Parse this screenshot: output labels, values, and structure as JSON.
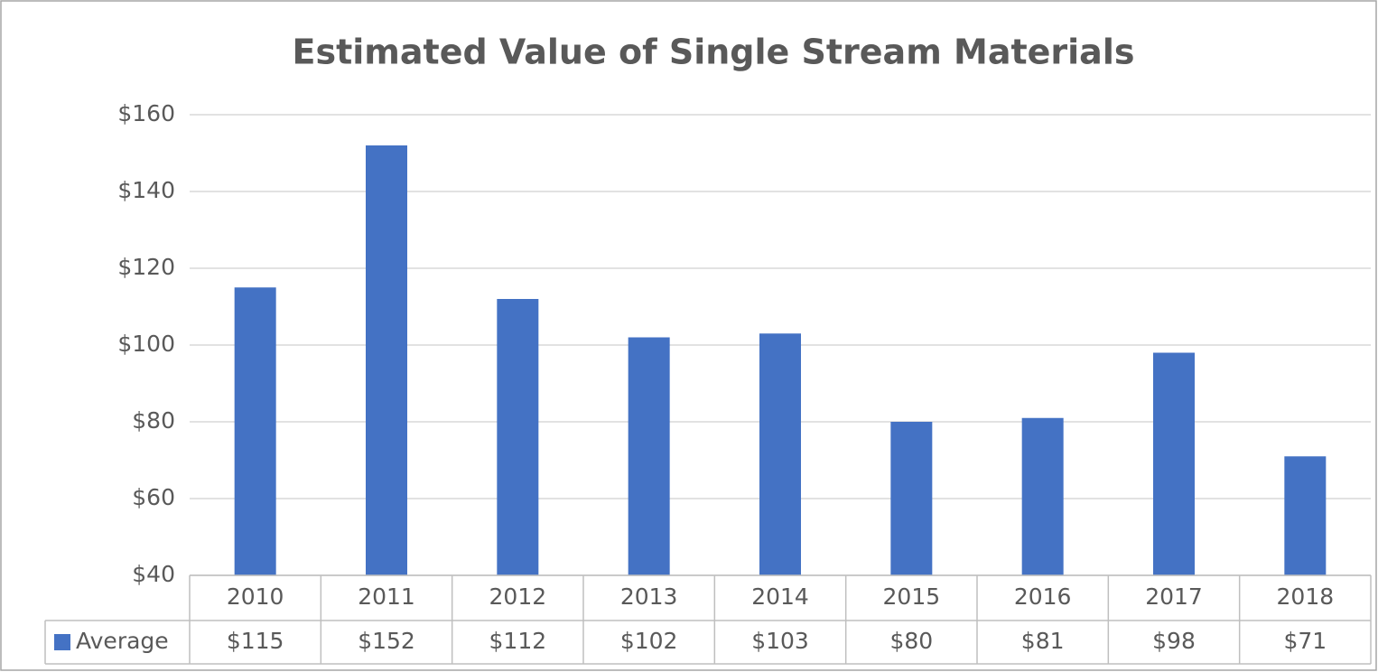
{
  "chart_data": {
    "type": "bar",
    "title": "Estimated Value of Single Stream Materials",
    "categories": [
      "2010",
      "2011",
      "2012",
      "2013",
      "2014",
      "2015",
      "2016",
      "2017",
      "2018"
    ],
    "series": [
      {
        "name": "Average",
        "color": "#4472c4",
        "values": [
          115,
          152,
          112,
          102,
          103,
          80,
          81,
          98,
          71
        ],
        "value_labels": [
          "$115",
          "$152",
          "$112",
          "$102",
          "$103",
          "$80",
          "$81",
          "$98",
          "$71"
        ]
      }
    ],
    "ylim": [
      40,
      160
    ],
    "yticks": [
      {
        "value": 40,
        "label": "$40"
      },
      {
        "value": 60,
        "label": "$60"
      },
      {
        "value": 80,
        "label": "$80"
      },
      {
        "value": 100,
        "label": "$100"
      },
      {
        "value": 120,
        "label": "$120"
      },
      {
        "value": 140,
        "label": "$140"
      },
      {
        "value": 160,
        "label": "$160"
      }
    ],
    "grid": true
  }
}
